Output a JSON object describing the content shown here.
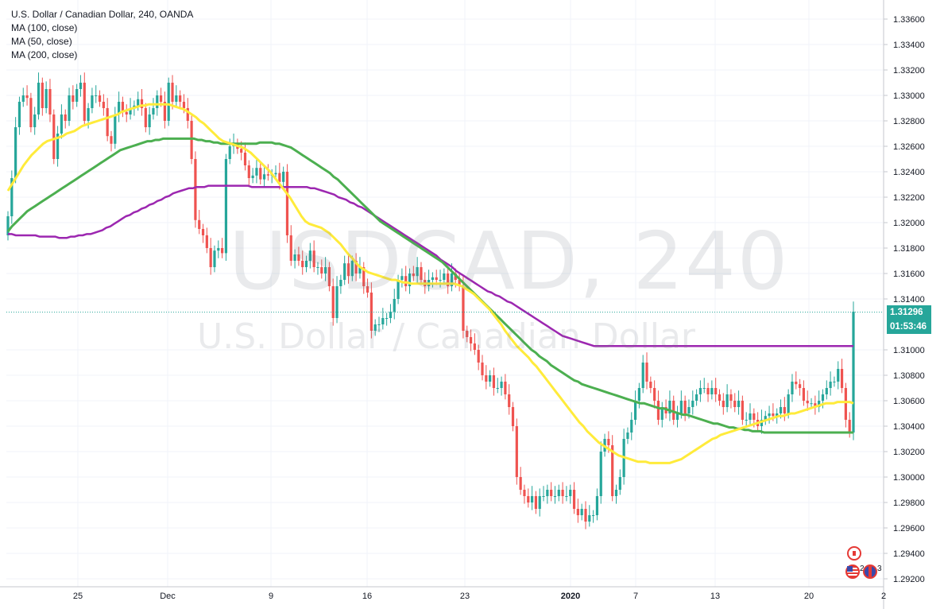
{
  "legend": {
    "title": "U.S. Dollar / Canadian Dollar, 240, OANDA",
    "ma100": "MA (100, close)",
    "ma50": "MA (50, close)",
    "ma200": "MA (200, close)"
  },
  "watermark": {
    "symbol": "USDCAD, 240",
    "name": "U.S. Dollar / Canadian Dollar"
  },
  "price_axis": {
    "labels": [
      "1.33600",
      "1.33400",
      "1.33200",
      "1.33000",
      "1.32800",
      "1.32600",
      "1.32400",
      "1.32200",
      "1.32000",
      "1.31800",
      "1.31600",
      "1.31400",
      "1.31000",
      "1.30800",
      "1.30600",
      "1.30400",
      "1.30200",
      "1.30000",
      "1.29800",
      "1.29600",
      "1.29400",
      "1.29200"
    ],
    "current_price": "1.31296",
    "countdown": "01:53:46"
  },
  "time_axis": {
    "labels": [
      "25",
      "Dec",
      "9",
      "16",
      "23",
      "2020",
      "7",
      "13",
      "20",
      "2"
    ]
  },
  "events": {
    "ca_flag_icon": "canada-flag-icon",
    "us_flag_icon": "us-flag-icon",
    "us_count": "2",
    "uk_count": "3"
  },
  "colors": {
    "up": "#26a69a",
    "down": "#ef5350",
    "ma100": "#4caf50",
    "ma50": "#ffeb3b",
    "ma200": "#9c27b0",
    "price_badge": "#26a69a",
    "countdown_badge": "#26a69a",
    "grid": "#f0f3fa",
    "axis_text": "#131722"
  },
  "chart_data": {
    "type": "candlestick",
    "title": "U.S. Dollar / Canadian Dollar, 240, OANDA",
    "ylim": [
      1.2915,
      1.337
    ],
    "grid": true,
    "x_ticks": [
      "25",
      "Dec",
      "9",
      "16",
      "23",
      "2020",
      "7",
      "13",
      "20",
      "2"
    ],
    "close": [
      1.3205,
      1.3235,
      1.3275,
      1.3295,
      1.33,
      1.3298,
      1.3275,
      1.3285,
      1.331,
      1.329,
      1.3305,
      1.3285,
      1.325,
      1.327,
      1.3285,
      1.328,
      1.33,
      1.3295,
      1.3305,
      1.331,
      1.328,
      1.329,
      1.33,
      1.33,
      1.3295,
      1.329,
      1.3268,
      1.3262,
      1.3285,
      1.3295,
      1.3287,
      1.3285,
      1.329,
      1.3292,
      1.3297,
      1.329,
      1.3275,
      1.3285,
      1.329,
      1.33,
      1.3295,
      1.328,
      1.331,
      1.3295,
      1.33,
      1.3295,
      1.329,
      1.328,
      1.325,
      1.3202,
      1.3195,
      1.319,
      1.318,
      1.3165,
      1.3178,
      1.318,
      1.3176,
      1.325,
      1.326,
      1.3262,
      1.3258,
      1.3255,
      1.3245,
      1.3235,
      1.3237,
      1.3243,
      1.3234,
      1.3238,
      1.3237,
      1.3238,
      1.3239,
      1.3232,
      1.324,
      1.319,
      1.317,
      1.3175,
      1.317,
      1.3165,
      1.317,
      1.3178,
      1.3165,
      1.3165,
      1.316,
      1.3165,
      1.315,
      1.3125,
      1.315,
      1.3155,
      1.3168,
      1.3158,
      1.317,
      1.316,
      1.3165,
      1.315,
      1.3145,
      1.3115,
      1.312,
      1.312,
      1.3125,
      1.3125,
      1.313,
      1.314,
      1.3155,
      1.3158,
      1.315,
      1.316,
      1.3158,
      1.3165,
      1.3155,
      1.315,
      1.3155,
      1.3157,
      1.3155,
      1.3155,
      1.316,
      1.315,
      1.316,
      1.3155,
      1.315,
      1.3115,
      1.311,
      1.3105,
      1.31,
      1.309,
      1.308,
      1.3075,
      1.308,
      1.307,
      1.307,
      1.3075,
      1.3065,
      1.3055,
      1.304,
      1.3,
      1.299,
      1.2985,
      1.298,
      1.2985,
      1.2975,
      1.2985,
      1.2985,
      1.299,
      1.2985,
      1.2985,
      1.299,
      1.2985,
      1.2985,
      1.299,
      1.2975,
      1.297,
      1.2975,
      1.2965,
      1.297,
      1.297,
      1.2985,
      1.302,
      1.303,
      1.3025,
      1.2985,
      1.299,
      1.3,
      1.303,
      1.3035,
      1.3045,
      1.306,
      1.307,
      1.309,
      1.3075,
      1.307,
      1.306,
      1.3045,
      1.3055,
      1.305,
      1.306,
      1.3045,
      1.305,
      1.306,
      1.305,
      1.3055,
      1.306,
      1.3065,
      1.307,
      1.307,
      1.3065,
      1.307,
      1.3065,
      1.306,
      1.3055,
      1.3065,
      1.306,
      1.3055,
      1.306,
      1.3045,
      1.3045,
      1.305,
      1.3045,
      1.304,
      1.3045,
      1.3048,
      1.305,
      1.3048,
      1.305,
      1.3055,
      1.305,
      1.3065,
      1.3075,
      1.3073,
      1.307,
      1.306,
      1.3058,
      1.3058,
      1.3055,
      1.306,
      1.3065,
      1.307,
      1.3075,
      1.3075,
      1.3085,
      1.307,
      1.3045,
      1.3035,
      1.313
    ],
    "ma50": [
      1.3225,
      1.323,
      1.3235,
      1.324,
      1.3245,
      1.3249,
      1.3253,
      1.3256,
      1.3259,
      1.3262,
      1.3264,
      1.3265,
      1.3266,
      1.3267,
      1.3268,
      1.327,
      1.3271,
      1.3272,
      1.3274,
      1.3276,
      1.3277,
      1.3278,
      1.3279,
      1.328,
      1.3281,
      1.3282,
      1.3283,
      1.3284,
      1.3285,
      1.3287,
      1.3288,
      1.3289,
      1.329,
      1.3291,
      1.3292,
      1.3292,
      1.3293,
      1.3293,
      1.3293,
      1.3293,
      1.3293,
      1.3293,
      1.3292,
      1.3291,
      1.329,
      1.3289,
      1.3287,
      1.3285,
      1.3283,
      1.328,
      1.3278,
      1.3275,
      1.3272,
      1.3269,
      1.3266,
      1.3264,
      1.3263,
      1.3262,
      1.3261,
      1.326,
      1.3259,
      1.3257,
      1.3255,
      1.3252,
      1.3249,
      1.3246,
      1.3243,
      1.324,
      1.3236,
      1.3232,
      1.3228,
      1.3224,
      1.322,
      1.3215,
      1.321,
      1.3205,
      1.3201,
      1.3199,
      1.3198,
      1.3197,
      1.3196,
      1.3194,
      1.3192,
      1.3189,
      1.3186,
      1.3183,
      1.3179,
      1.3175,
      1.3172,
      1.3168,
      1.3165,
      1.3163,
      1.3161,
      1.316,
      1.3159,
      1.3158,
      1.3157,
      1.3156,
      1.3155,
      1.3155,
      1.3154,
      1.3153,
      1.3153,
      1.3152,
      1.3152,
      1.3152,
      1.3152,
      1.3152,
      1.3152,
      1.3152,
      1.3152,
      1.3152,
      1.3152,
      1.3152,
      1.3152,
      1.3151,
      1.315,
      1.3148,
      1.3146,
      1.3144,
      1.3141,
      1.3138,
      1.3135,
      1.3132,
      1.3128,
      1.3124,
      1.312,
      1.3115,
      1.3111,
      1.3107,
      1.3103,
      1.31,
      1.3097,
      1.3094,
      1.309,
      1.3087,
      1.3083,
      1.3079,
      1.3075,
      1.3071,
      1.3067,
      1.3063,
      1.3059,
      1.3055,
      1.3051,
      1.3047,
      1.3043,
      1.304,
      1.3036,
      1.3033,
      1.303,
      1.3027,
      1.3025,
      1.3023,
      1.3021,
      1.3019,
      1.3017,
      1.3016,
      1.3015,
      1.3014,
      1.3013,
      1.3012,
      1.3012,
      1.3012,
      1.3011,
      1.3011,
      1.3011,
      1.3011,
      1.3011,
      1.3011,
      1.3012,
      1.3013,
      1.3014,
      1.3016,
      1.3018,
      1.302,
      1.3022,
      1.3024,
      1.3026,
      1.3028,
      1.303,
      1.3031,
      1.3033,
      1.3034,
      1.3035,
      1.3036,
      1.3037,
      1.3038,
      1.3039,
      1.304,
      1.3041,
      1.3042,
      1.3043,
      1.3044,
      1.3045,
      1.3046,
      1.3047,
      1.3048,
      1.3048,
      1.3049,
      1.305,
      1.305,
      1.3051,
      1.3052,
      1.3053,
      1.3054,
      1.3055,
      1.3056,
      1.3057,
      1.3058,
      1.3058,
      1.3058,
      1.3059,
      1.3059,
      1.3059,
      1.3059,
      1.3058
    ],
    "ma100": [
      1.3193,
      1.3197,
      1.32,
      1.3203,
      1.3206,
      1.3209,
      1.3211,
      1.3213,
      1.3215,
      1.3217,
      1.3219,
      1.3221,
      1.3223,
      1.3225,
      1.3227,
      1.3229,
      1.3231,
      1.3233,
      1.3235,
      1.3237,
      1.3239,
      1.3241,
      1.3243,
      1.3245,
      1.3247,
      1.3249,
      1.3251,
      1.3253,
      1.3255,
      1.3257,
      1.3258,
      1.3259,
      1.326,
      1.3261,
      1.3262,
      1.3263,
      1.3264,
      1.3264,
      1.3265,
      1.3265,
      1.3266,
      1.3266,
      1.3266,
      1.3266,
      1.3266,
      1.3266,
      1.3266,
      1.3266,
      1.3266,
      1.3265,
      1.3265,
      1.3264,
      1.3264,
      1.3263,
      1.3263,
      1.3262,
      1.3262,
      1.3262,
      1.3262,
      1.3262,
      1.3262,
      1.3262,
      1.3262,
      1.3262,
      1.3262,
      1.3263,
      1.3263,
      1.3263,
      1.3263,
      1.3262,
      1.3262,
      1.3261,
      1.326,
      1.3259,
      1.3257,
      1.3255,
      1.3253,
      1.3251,
      1.3249,
      1.3247,
      1.3245,
      1.3243,
      1.3241,
      1.3239,
      1.3236,
      1.3234,
      1.3231,
      1.3228,
      1.3225,
      1.3222,
      1.3219,
      1.3216,
      1.3213,
      1.321,
      1.3207,
      1.3204,
      1.3201,
      1.3199,
      1.3197,
      1.3195,
      1.3193,
      1.3191,
      1.3189,
      1.3187,
      1.3185,
      1.3183,
      1.3181,
      1.3179,
      1.3177,
      1.3175,
      1.3173,
      1.3171,
      1.3169,
      1.3166,
      1.3163,
      1.316,
      1.3157,
      1.3154,
      1.3151,
      1.3148,
      1.3145,
      1.3142,
      1.3139,
      1.3136,
      1.3133,
      1.313,
      1.3127,
      1.3124,
      1.3121,
      1.3118,
      1.3115,
      1.3112,
      1.3109,
      1.3106,
      1.3103,
      1.31,
      1.3098,
      1.3095,
      1.3093,
      1.3091,
      1.3088,
      1.3086,
      1.3084,
      1.3082,
      1.308,
      1.3078,
      1.3076,
      1.3075,
      1.3073,
      1.3072,
      1.3071,
      1.307,
      1.3069,
      1.3068,
      1.3067,
      1.3066,
      1.3065,
      1.3064,
      1.3063,
      1.3062,
      1.3061,
      1.306,
      1.3059,
      1.3058,
      1.3058,
      1.3057,
      1.3056,
      1.3055,
      1.3054,
      1.3054,
      1.3053,
      1.3052,
      1.3051,
      1.305,
      1.3049,
      1.3049,
      1.3048,
      1.3047,
      1.3046,
      1.3045,
      1.3044,
      1.3043,
      1.3042,
      1.3042,
      1.3041,
      1.304,
      1.3039,
      1.3039,
      1.3038,
      1.3038,
      1.3037,
      1.3037,
      1.3036,
      1.3036,
      1.3036,
      1.3035,
      1.3035,
      1.3035,
      1.3035,
      1.3035,
      1.3035,
      1.3035,
      1.3035,
      1.3035,
      1.3035,
      1.3035,
      1.3035,
      1.3035,
      1.3035,
      1.3035,
      1.3035,
      1.3035,
      1.3035,
      1.3035,
      1.3035,
      1.3035,
      1.3035,
      1.3035,
      1.3035
    ],
    "ma200": [
      1.3191,
      1.3191,
      1.319,
      1.319,
      1.319,
      1.319,
      1.319,
      1.319,
      1.3189,
      1.3189,
      1.3189,
      1.3189,
      1.3189,
      1.3188,
      1.3188,
      1.3188,
      1.3189,
      1.3189,
      1.319,
      1.319,
      1.3191,
      1.3191,
      1.3192,
      1.3193,
      1.3194,
      1.3196,
      1.3197,
      1.3199,
      1.3201,
      1.3203,
      1.3205,
      1.3206,
      1.3208,
      1.3209,
      1.3211,
      1.3212,
      1.3214,
      1.3215,
      1.3217,
      1.3218,
      1.322,
      1.3221,
      1.3223,
      1.3224,
      1.3225,
      1.3226,
      1.3227,
      1.3227,
      1.3228,
      1.3228,
      1.3228,
      1.3229,
      1.3229,
      1.3229,
      1.3229,
      1.3229,
      1.3229,
      1.3229,
      1.3229,
      1.3229,
      1.3229,
      1.3229,
      1.3228,
      1.3228,
      1.3228,
      1.3228,
      1.3228,
      1.3228,
      1.3228,
      1.3228,
      1.3228,
      1.3228,
      1.3228,
      1.3228,
      1.3228,
      1.3228,
      1.3228,
      1.3227,
      1.3227,
      1.3226,
      1.3225,
      1.3224,
      1.3223,
      1.3222,
      1.322,
      1.3219,
      1.3218,
      1.3216,
      1.3215,
      1.3213,
      1.3212,
      1.321,
      1.3208,
      1.3206,
      1.3204,
      1.3202,
      1.32,
      1.3198,
      1.3196,
      1.3194,
      1.3192,
      1.319,
      1.3188,
      1.3186,
      1.3184,
      1.3182,
      1.318,
      1.3178,
      1.3176,
      1.3174,
      1.3171,
      1.3169,
      1.3167,
      1.3165,
      1.3162,
      1.316,
      1.3158,
      1.3156,
      1.3154,
      1.3152,
      1.315,
      1.3148,
      1.3146,
      1.3145,
      1.3143,
      1.3142,
      1.314,
      1.3138,
      1.3137,
      1.3135,
      1.3133,
      1.3131,
      1.3129,
      1.3127,
      1.3125,
      1.3123,
      1.3121,
      1.3119,
      1.3117,
      1.3115,
      1.3113,
      1.3111,
      1.311,
      1.3109,
      1.3108,
      1.3107,
      1.3106,
      1.3105,
      1.3104,
      1.3103,
      1.3103,
      1.3103,
      1.3103,
      1.3103,
      1.3103,
      1.3103,
      1.3103,
      1.3103,
      1.3103,
      1.3103,
      1.3103,
      1.3103,
      1.3103,
      1.3103,
      1.3103,
      1.3103,
      1.3103,
      1.3103,
      1.3103,
      1.3103,
      1.3103,
      1.3103,
      1.3103,
      1.3103,
      1.3103,
      1.3103,
      1.3103,
      1.3103,
      1.3103,
      1.3103,
      1.3103,
      1.3103,
      1.3103,
      1.3103,
      1.3103,
      1.3103,
      1.3103,
      1.3103,
      1.3103,
      1.3103,
      1.3103,
      1.3103,
      1.3103,
      1.3103,
      1.3103,
      1.3103,
      1.3103,
      1.3103,
      1.3103,
      1.3103,
      1.3103,
      1.3103,
      1.3103,
      1.3103,
      1.3103,
      1.3103,
      1.3103,
      1.3103,
      1.3103,
      1.3103,
      1.3103,
      1.3103,
      1.3103,
      1.3103,
      1.3103,
      1.3103
    ]
  }
}
